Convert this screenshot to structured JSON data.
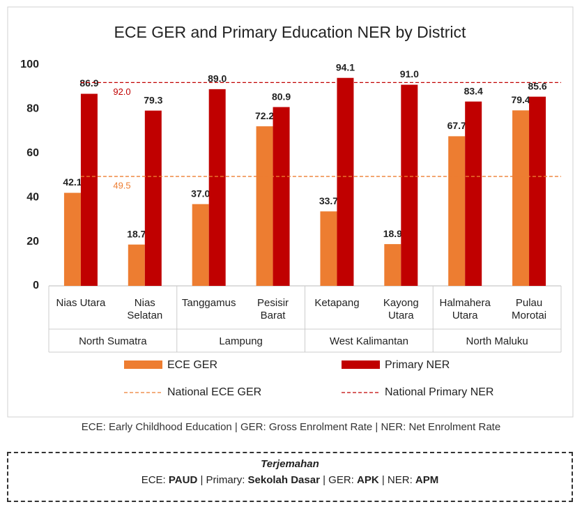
{
  "chart_data": {
    "type": "bar",
    "title": "ECE GER and Primary Education NER by District",
    "categories": [
      [
        "Nias Utara"
      ],
      [
        "Nias",
        "Selatan"
      ],
      [
        "Tanggamus"
      ],
      [
        "Pesisir",
        "Barat"
      ],
      [
        "Ketapang"
      ],
      [
        "Kayong",
        "Utara"
      ],
      [
        "Halmahera",
        "Utara"
      ],
      [
        "Pulau",
        "Morotai"
      ]
    ],
    "groups": [
      {
        "name": "North Sumatra",
        "size": 2
      },
      {
        "name": "Lampung",
        "size": 2
      },
      {
        "name": "West Kalimantan",
        "size": 2
      },
      {
        "name": "North Maluku",
        "size": 2
      }
    ],
    "series": [
      {
        "name": "ECE GER",
        "color": "#ed7d31",
        "values": [
          42.1,
          18.7,
          37.0,
          72.2,
          33.7,
          18.9,
          67.7,
          79.4
        ],
        "value_labels": [
          "42.1",
          "18.7",
          "37.0",
          "72.2",
          "33.7",
          "18.9",
          "67.7",
          "79.4"
        ]
      },
      {
        "name": "Primary NER",
        "color": "#c00000",
        "values": [
          86.9,
          79.3,
          89.0,
          80.9,
          94.1,
          91.0,
          83.4,
          85.6
        ],
        "value_labels": [
          "86.9",
          "79.3",
          "89.0",
          "80.9",
          "94.1",
          "91.0",
          "83.4",
          "85.6"
        ]
      }
    ],
    "reference_lines": [
      {
        "name": "National ECE GER",
        "value": 49.5,
        "value_label": "49.5",
        "color": "#ed7d31"
      },
      {
        "name": "National Primary NER",
        "value": 92.0,
        "value_label": "92.0",
        "color": "#c00000"
      }
    ],
    "ylim": [
      0,
      100
    ],
    "yticks": [
      0,
      20,
      40,
      60,
      80,
      100
    ],
    "legend": "bottom"
  },
  "footnote": "ECE: Early Childhood Education | GER: Gross Enrolment Rate | NER: Net Enrolment Rate",
  "translation": {
    "title": "Terjemahan",
    "segments": [
      {
        "text": "ECE: ",
        "bold": false
      },
      {
        "text": "PAUD",
        "bold": true
      },
      {
        "text": " | Primary: ",
        "bold": false
      },
      {
        "text": "Sekolah Dasar",
        "bold": true
      },
      {
        "text": " | GER: ",
        "bold": false
      },
      {
        "text": "APK",
        "bold": true
      },
      {
        "text": " | NER: ",
        "bold": false
      },
      {
        "text": "APM",
        "bold": true
      }
    ]
  }
}
